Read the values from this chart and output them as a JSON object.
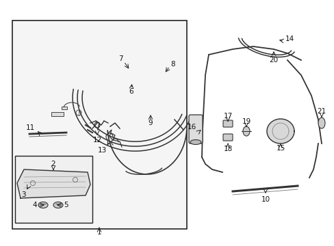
{
  "bg_color": "#ffffff",
  "lc": "#222222",
  "fig_width": 4.89,
  "fig_height": 3.6,
  "dpi": 100,
  "label_fs": 7.5
}
